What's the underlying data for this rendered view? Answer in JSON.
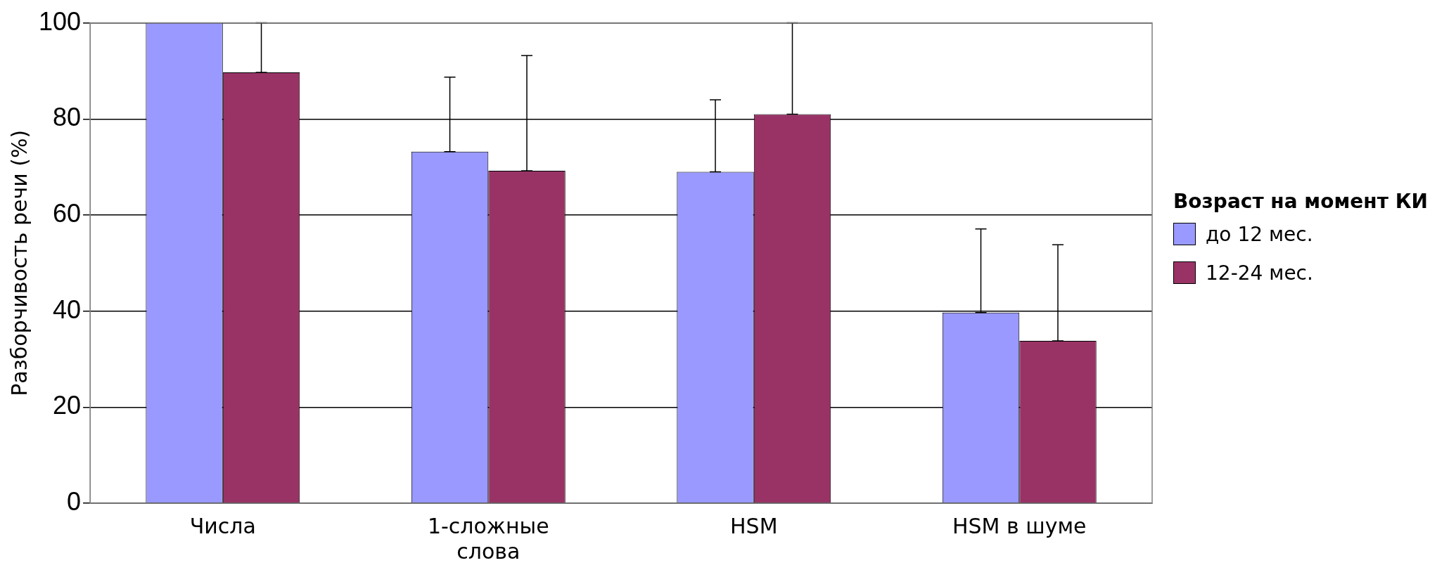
{
  "chart_data": {
    "type": "bar",
    "ylabel": "Разборчивость речи (%)",
    "legend_title": "Возраст на момент КИ",
    "categories": [
      "Числа",
      "1-сложные слова",
      "HSM",
      "HSM в шуме"
    ],
    "series": [
      {
        "name": "до 12 мес.",
        "color": "#9999ff",
        "values": [
          100,
          73.2,
          69,
          39.7
        ],
        "errors": [
          null,
          [
            73.2,
            88.7
          ],
          [
            69,
            84
          ],
          [
            39.7,
            57.1
          ]
        ]
      },
      {
        "name": "12-24 мес.",
        "color": "#993366",
        "values": [
          89.7,
          69.2,
          81,
          33.8
        ],
        "errors": [
          [
            89.7,
            100
          ],
          [
            69.2,
            93.2
          ],
          [
            81,
            100
          ],
          [
            33.8,
            53.8
          ]
        ]
      }
    ],
    "ylim": [
      0,
      100
    ],
    "yticks": [
      0,
      20,
      40,
      60,
      80,
      100
    ],
    "grid": "y",
    "legend": "right"
  }
}
